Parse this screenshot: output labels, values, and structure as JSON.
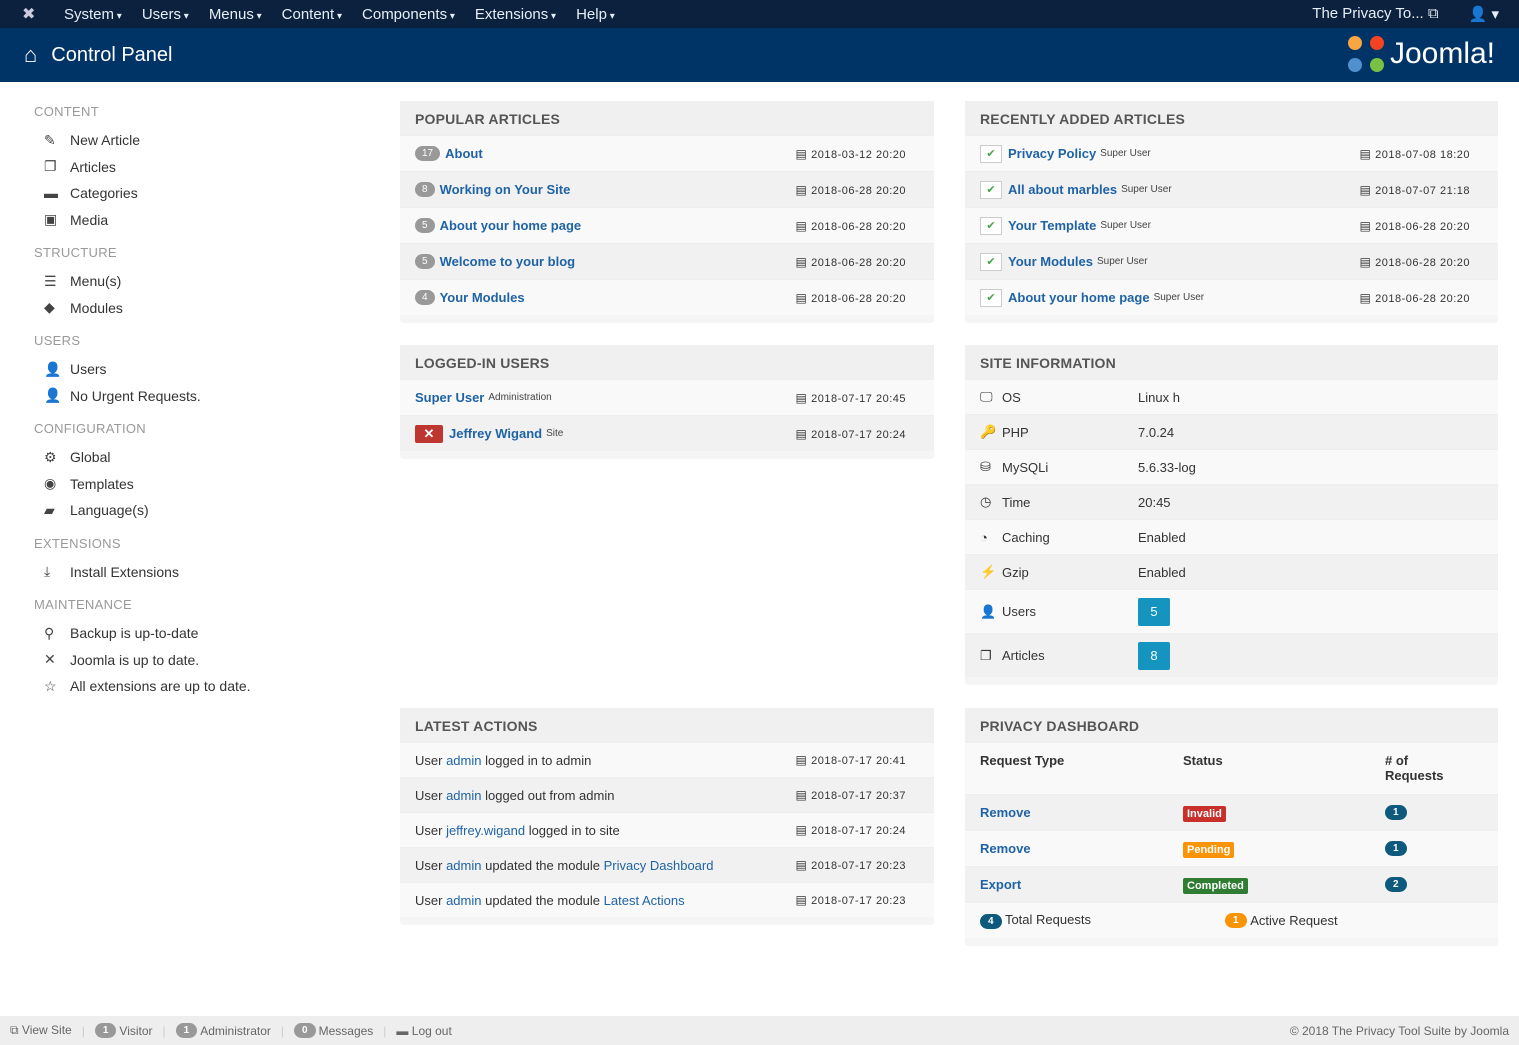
{
  "topnav": {
    "menus": [
      "System",
      "Users",
      "Menus",
      "Content",
      "Components",
      "Extensions",
      "Help"
    ],
    "site_link": "The Privacy To...",
    "user_icon": "user-icon"
  },
  "header": {
    "title": "Control Panel",
    "brand": "Joomla!"
  },
  "sidebar": [
    {
      "title": "CONTENT",
      "items": [
        {
          "icon": "✎",
          "label": "New Article"
        },
        {
          "icon": "❐",
          "label": "Articles"
        },
        {
          "icon": "▬",
          "label": "Categories"
        },
        {
          "icon": "▣",
          "label": "Media"
        }
      ]
    },
    {
      "title": "STRUCTURE",
      "items": [
        {
          "icon": "☰",
          "label": "Menu(s)"
        },
        {
          "icon": "◆",
          "label": "Modules"
        }
      ]
    },
    {
      "title": "USERS",
      "items": [
        {
          "icon": "👤",
          "label": "Users"
        },
        {
          "icon": "👤",
          "label": "No Urgent Requests."
        }
      ]
    },
    {
      "title": "CONFIGURATION",
      "items": [
        {
          "icon": "⚙",
          "label": "Global"
        },
        {
          "icon": "◉",
          "label": "Templates"
        },
        {
          "icon": "▰",
          "label": "Language(s)"
        }
      ]
    },
    {
      "title": "EXTENSIONS",
      "items": [
        {
          "icon": "⤓",
          "label": "Install Extensions"
        }
      ]
    },
    {
      "title": "MAINTENANCE",
      "items": [
        {
          "icon": "⚲",
          "label": "Backup is up-to-date"
        },
        {
          "icon": "✕",
          "label": "Joomla is up to date."
        },
        {
          "icon": "☆",
          "label": "All extensions are up to date."
        }
      ]
    }
  ],
  "popular": {
    "title": "POPULAR ARTICLES",
    "rows": [
      {
        "hits": "17",
        "title": "About",
        "date": "2018-03-12 20:20"
      },
      {
        "hits": "8",
        "title": "Working on Your Site",
        "date": "2018-06-28 20:20"
      },
      {
        "hits": "5",
        "title": "About your home page",
        "date": "2018-06-28 20:20"
      },
      {
        "hits": "5",
        "title": "Welcome to your blog",
        "date": "2018-06-28 20:20"
      },
      {
        "hits": "4",
        "title": "Your Modules",
        "date": "2018-06-28 20:20"
      }
    ]
  },
  "recent": {
    "title": "RECENTLY ADDED ARTICLES",
    "rows": [
      {
        "title": "Privacy Policy",
        "author": "Super User",
        "date": "2018-07-08 18:20"
      },
      {
        "title": "All about marbles",
        "author": "Super User",
        "date": "2018-07-07 21:18"
      },
      {
        "title": "Your Template",
        "author": "Super User",
        "date": "2018-06-28 20:20"
      },
      {
        "title": "Your Modules",
        "author": "Super User",
        "date": "2018-06-28 20:20"
      },
      {
        "title": "About your home page",
        "author": "Super User",
        "date": "2018-06-28 20:20"
      }
    ]
  },
  "logged": {
    "title": "LOGGED-IN USERS",
    "rows": [
      {
        "name": "Super User",
        "where": "Administration",
        "date": "2018-07-17 20:45",
        "logout": false
      },
      {
        "name": "Jeffrey Wigand",
        "where": "Site",
        "date": "2018-07-17 20:24",
        "logout": true
      }
    ]
  },
  "siteinfo": {
    "title": "SITE INFORMATION",
    "rows": [
      {
        "icon": "🖵",
        "key": "OS",
        "value": "Linux h"
      },
      {
        "icon": "🔑",
        "key": "PHP",
        "value": "7.0.24"
      },
      {
        "icon": "⛁",
        "key": "MySQLi",
        "value": "5.6.33-log"
      },
      {
        "icon": "◷",
        "key": "Time",
        "value": "20:45"
      },
      {
        "icon": "◔",
        "key": "Caching",
        "value": "Enabled"
      },
      {
        "icon": "⚡",
        "key": "Gzip",
        "value": "Enabled"
      },
      {
        "icon": "👤",
        "key": "Users",
        "value": "5",
        "box": true
      },
      {
        "icon": "❐",
        "key": "Articles",
        "value": "8",
        "box": true
      }
    ]
  },
  "actions": {
    "title": "LATEST ACTIONS",
    "rows": [
      {
        "pre": "User ",
        "user": "admin",
        "post": " logged in to admin",
        "link": "",
        "date": "2018-07-17 20:41"
      },
      {
        "pre": "User ",
        "user": "admin",
        "post": " logged out from admin",
        "link": "",
        "date": "2018-07-17 20:37"
      },
      {
        "pre": "User ",
        "user": "jeffrey.wigand",
        "post": " logged in to site",
        "link": "",
        "date": "2018-07-17 20:24"
      },
      {
        "pre": "User ",
        "user": "admin",
        "post": " updated the module ",
        "link": "Privacy Dashboard",
        "date": "2018-07-17 20:23"
      },
      {
        "pre": "User ",
        "user": "admin",
        "post": " updated the module ",
        "link": "Latest Actions",
        "date": "2018-07-17 20:23"
      }
    ]
  },
  "privacy": {
    "title": "PRIVACY DASHBOARD",
    "headers": [
      "Request Type",
      "Status",
      "# of Requests"
    ],
    "rows": [
      {
        "type": "Remove",
        "status": "Invalid",
        "color": "#c9302c",
        "count": "1"
      },
      {
        "type": "Remove",
        "status": "Pending",
        "color": "#f89406",
        "count": "1"
      },
      {
        "type": "Export",
        "status": "Completed",
        "color": "#2f7d32",
        "count": "2"
      }
    ],
    "total_count": "4",
    "total_label": "Total Requests",
    "active_count": "1",
    "active_label": "Active Request"
  },
  "footer": {
    "view_site": "View Site",
    "visitor_count": "1",
    "visitor": "Visitor",
    "admin_count": "1",
    "admin": "Administrator",
    "msg_count": "0",
    "messages": "Messages",
    "logout": "Log out",
    "copyright": "© 2018 The Privacy Tool Suite by Joomla"
  }
}
